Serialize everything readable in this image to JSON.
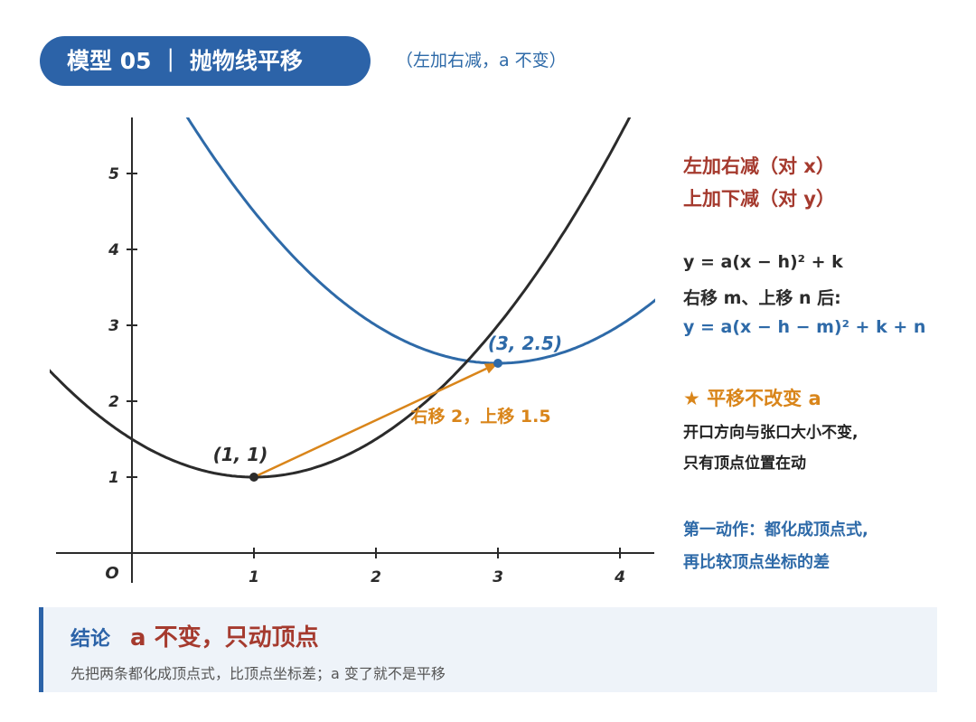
{
  "header": {
    "title": "模型 05 ｜ 抛物线平移",
    "subtitle": "（左加右减，a 不变）"
  },
  "graph": {
    "origin_label": "O",
    "x_ticks": [
      "1",
      "2",
      "3",
      "4"
    ],
    "y_ticks": [
      "1",
      "2",
      "3",
      "4",
      "5"
    ],
    "original": {
      "h": 1,
      "k": 1,
      "a": 0.5,
      "label": "(1, 1)",
      "color": "#2b2b2b"
    },
    "shifted": {
      "h": 3,
      "k": 2.5,
      "a": 0.5,
      "label": "(3, 2.5)",
      "color": "#2e6aa8"
    },
    "arrow": {
      "label": "右移 2，上移 1.5",
      "color": "#d9851a"
    }
  },
  "side": {
    "rule1": "左加右减（对 x）",
    "rule2": "上加下减（对 y）",
    "formula": "y = a(x − h)² + k",
    "shift_text": "右移 m、上移 n 后:",
    "new_formula": "y = a(x − h − m)² + k + n",
    "star_title": "★ 平移不改变 a",
    "star_line1": "开口方向与张口大小不变,",
    "star_line2": "只有顶点位置在动",
    "action_line1": "第一动作：都化成顶点式,",
    "action_line2": "再比较顶点坐标的差"
  },
  "conclusion": {
    "label": "结论",
    "main": "a 不变，只动顶点",
    "sub": "先把两条都化成顶点式，比顶点坐标差；a 变了就不是平移"
  }
}
